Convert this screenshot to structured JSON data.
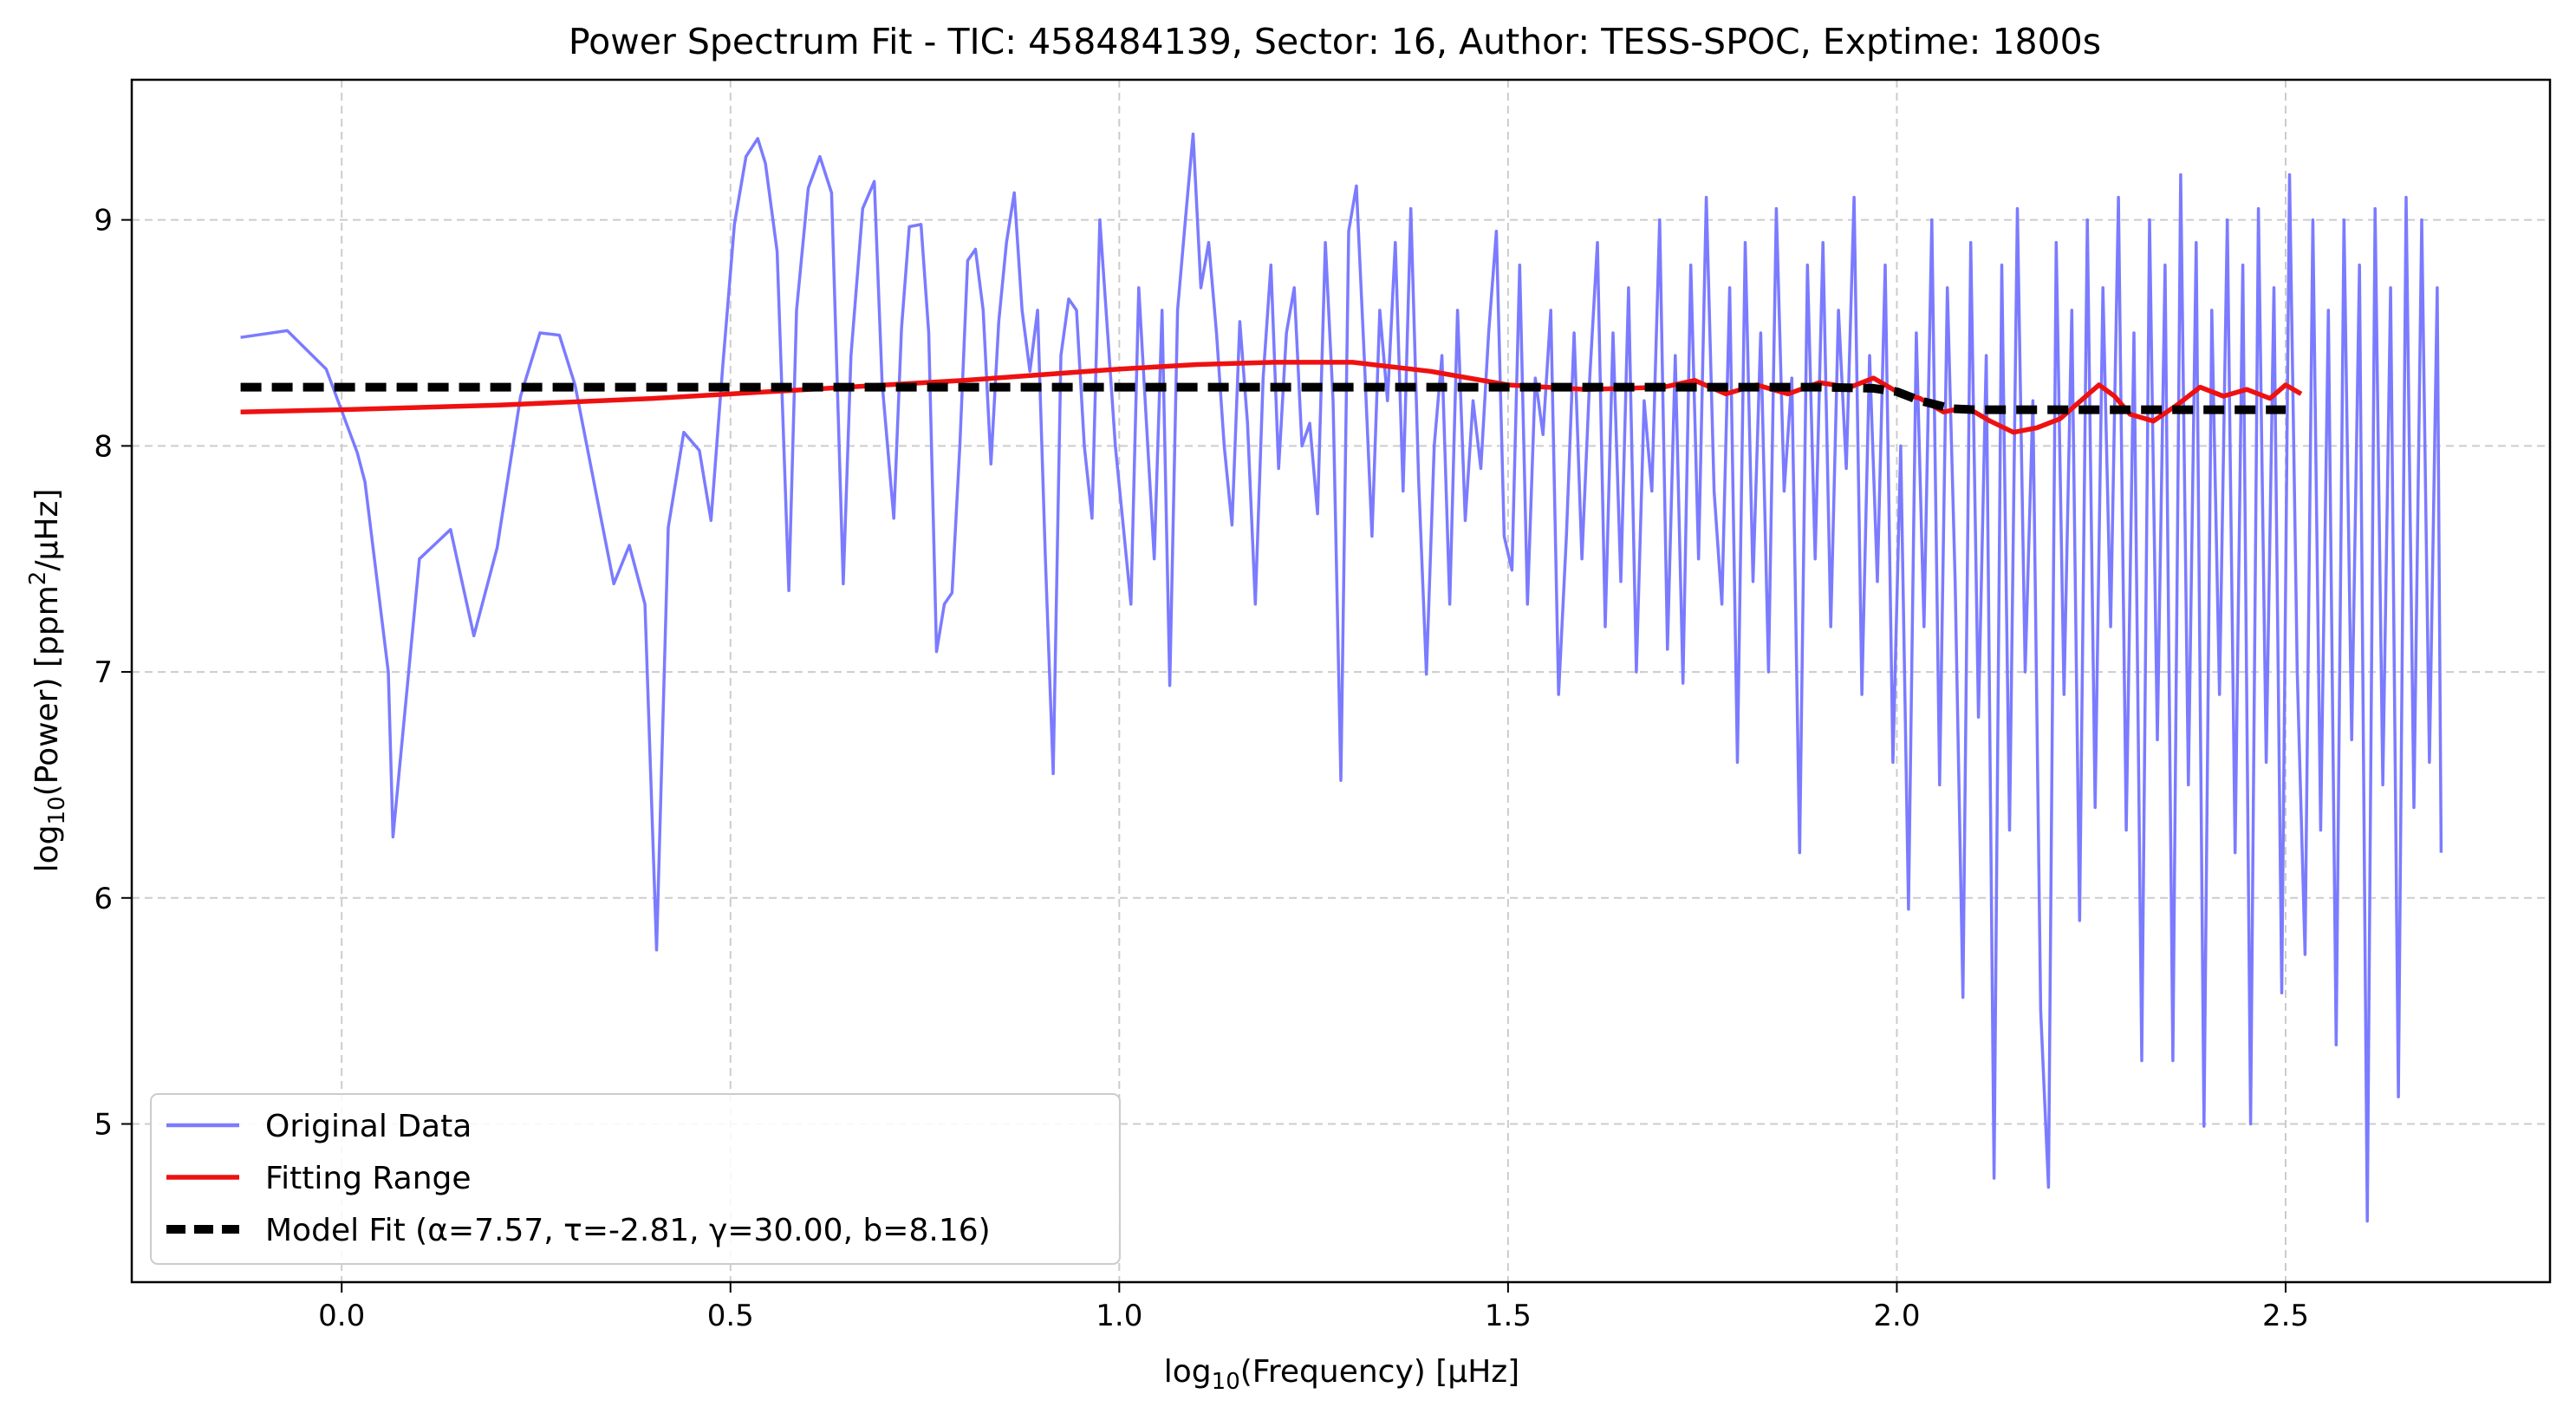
{
  "chart_data": {
    "type": "line",
    "title": "Power Spectrum Fit - TIC: 458484139, Sector: 16, Author: TESS-SPOC, Exptime: 1800s",
    "xlabel": {
      "prefix": "log",
      "sub": "10",
      "suffix": "(Frequency) [μHz]"
    },
    "ylabel": {
      "prefix": "log",
      "sub": "10",
      "mid": "(Power) [ppm",
      "sup": "2",
      "suffix": "/μHz]"
    },
    "xlim": [
      -0.27,
      2.84
    ],
    "ylim": [
      4.3,
      9.62
    ],
    "xticks": [
      0.0,
      0.5,
      1.0,
      1.5,
      2.0,
      2.5
    ],
    "xtick_labels": [
      "0.0",
      "0.5",
      "1.0",
      "1.5",
      "2.0",
      "2.5"
    ],
    "yticks": [
      5,
      6,
      7,
      8,
      9
    ],
    "ytick_labels": [
      "5",
      "6",
      "7",
      "8",
      "9"
    ],
    "grid": true,
    "legend_position": "lower-left",
    "series": [
      {
        "name": "Original Data",
        "color": "#7b7bff",
        "style": "solid",
        "points": [
          [
            -0.13,
            8.48
          ],
          [
            -0.07,
            8.51
          ],
          [
            -0.02,
            8.34
          ],
          [
            0.02,
            7.97
          ],
          [
            0.03,
            7.84
          ],
          [
            0.06,
            7.0
          ],
          [
            0.066,
            6.27
          ],
          [
            0.1,
            7.5
          ],
          [
            0.14,
            7.63
          ],
          [
            0.17,
            7.16
          ],
          [
            0.2,
            7.55
          ],
          [
            0.23,
            8.22
          ],
          [
            0.255,
            8.5
          ],
          [
            0.28,
            8.49
          ],
          [
            0.3,
            8.27
          ],
          [
            0.33,
            7.74
          ],
          [
            0.35,
            7.39
          ],
          [
            0.37,
            7.56
          ],
          [
            0.39,
            7.3
          ],
          [
            0.405,
            5.77
          ],
          [
            0.42,
            7.64
          ],
          [
            0.44,
            8.06
          ],
          [
            0.46,
            7.98
          ],
          [
            0.475,
            7.67
          ],
          [
            0.49,
            8.35
          ],
          [
            0.505,
            8.98
          ],
          [
            0.52,
            9.28
          ],
          [
            0.535,
            9.36
          ],
          [
            0.545,
            9.25
          ],
          [
            0.56,
            8.86
          ],
          [
            0.575,
            7.36
          ],
          [
            0.585,
            8.6
          ],
          [
            0.6,
            9.14
          ],
          [
            0.615,
            9.28
          ],
          [
            0.63,
            9.12
          ],
          [
            0.645,
            7.39
          ],
          [
            0.655,
            8.4
          ],
          [
            0.67,
            9.05
          ],
          [
            0.685,
            9.17
          ],
          [
            0.695,
            8.28
          ],
          [
            0.71,
            7.68
          ],
          [
            0.72,
            8.52
          ],
          [
            0.73,
            8.97
          ],
          [
            0.745,
            8.98
          ],
          [
            0.755,
            8.5
          ],
          [
            0.765,
            7.09
          ],
          [
            0.775,
            7.3
          ],
          [
            0.785,
            7.35
          ],
          [
            0.795,
            8.0
          ],
          [
            0.805,
            8.82
          ],
          [
            0.815,
            8.87
          ],
          [
            0.825,
            8.6
          ],
          [
            0.835,
            7.92
          ],
          [
            0.845,
            8.55
          ],
          [
            0.855,
            8.9
          ],
          [
            0.865,
            9.12
          ],
          [
            0.875,
            8.6
          ],
          [
            0.885,
            8.33
          ],
          [
            0.895,
            8.6
          ],
          [
            0.905,
            7.5
          ],
          [
            0.915,
            6.55
          ],
          [
            0.925,
            8.4
          ],
          [
            0.935,
            8.65
          ],
          [
            0.945,
            8.6
          ],
          [
            0.955,
            8.0
          ],
          [
            0.965,
            7.68
          ],
          [
            0.975,
            9.0
          ],
          [
            0.985,
            8.5
          ],
          [
            0.995,
            8.0
          ],
          [
            1.005,
            7.65
          ],
          [
            1.015,
            7.3
          ],
          [
            1.025,
            8.7
          ],
          [
            1.035,
            8.1
          ],
          [
            1.045,
            7.5
          ],
          [
            1.055,
            8.6
          ],
          [
            1.065,
            6.94
          ],
          [
            1.075,
            8.6
          ],
          [
            1.085,
            9.0
          ],
          [
            1.095,
            9.38
          ],
          [
            1.105,
            8.7
          ],
          [
            1.115,
            8.9
          ],
          [
            1.125,
            8.5
          ],
          [
            1.135,
            8.0
          ],
          [
            1.145,
            7.65
          ],
          [
            1.155,
            8.55
          ],
          [
            1.165,
            8.1
          ],
          [
            1.175,
            7.3
          ],
          [
            1.185,
            8.3
          ],
          [
            1.195,
            8.8
          ],
          [
            1.205,
            7.9
          ],
          [
            1.215,
            8.5
          ],
          [
            1.225,
            8.7
          ],
          [
            1.235,
            8.0
          ],
          [
            1.245,
            8.1
          ],
          [
            1.255,
            7.7
          ],
          [
            1.265,
            8.9
          ],
          [
            1.275,
            8.2
          ],
          [
            1.285,
            6.52
          ],
          [
            1.295,
            8.95
          ],
          [
            1.305,
            9.15
          ],
          [
            1.315,
            8.4
          ],
          [
            1.325,
            7.6
          ],
          [
            1.335,
            8.6
          ],
          [
            1.345,
            8.2
          ],
          [
            1.355,
            8.9
          ],
          [
            1.365,
            7.8
          ],
          [
            1.375,
            9.05
          ],
          [
            1.385,
            7.85
          ],
          [
            1.395,
            6.99
          ],
          [
            1.405,
            8.0
          ],
          [
            1.415,
            8.4
          ],
          [
            1.425,
            7.3
          ],
          [
            1.435,
            8.6
          ],
          [
            1.445,
            7.67
          ],
          [
            1.455,
            8.2
          ],
          [
            1.465,
            7.9
          ],
          [
            1.475,
            8.5
          ],
          [
            1.485,
            8.95
          ],
          [
            1.495,
            7.6
          ],
          [
            1.505,
            7.45
          ],
          [
            1.515,
            8.8
          ],
          [
            1.525,
            7.3
          ],
          [
            1.535,
            8.3
          ],
          [
            1.545,
            8.05
          ],
          [
            1.555,
            8.6
          ],
          [
            1.565,
            6.9
          ],
          [
            1.575,
            7.6
          ],
          [
            1.585,
            8.5
          ],
          [
            1.595,
            7.5
          ],
          [
            1.605,
            8.3
          ],
          [
            1.615,
            8.9
          ],
          [
            1.625,
            7.2
          ],
          [
            1.635,
            8.5
          ],
          [
            1.645,
            7.4
          ],
          [
            1.655,
            8.7
          ],
          [
            1.665,
            7.0
          ],
          [
            1.675,
            8.2
          ],
          [
            1.685,
            7.8
          ],
          [
            1.695,
            9.0
          ],
          [
            1.705,
            7.1
          ],
          [
            1.715,
            8.4
          ],
          [
            1.725,
            6.95
          ],
          [
            1.735,
            8.8
          ],
          [
            1.745,
            7.5
          ],
          [
            1.755,
            9.1
          ],
          [
            1.765,
            7.8
          ],
          [
            1.775,
            7.3
          ],
          [
            1.785,
            8.7
          ],
          [
            1.795,
            6.6
          ],
          [
            1.805,
            8.9
          ],
          [
            1.815,
            7.4
          ],
          [
            1.825,
            8.5
          ],
          [
            1.835,
            7.0
          ],
          [
            1.845,
            9.05
          ],
          [
            1.855,
            7.8
          ],
          [
            1.865,
            8.3
          ],
          [
            1.875,
            6.2
          ],
          [
            1.885,
            8.8
          ],
          [
            1.895,
            7.5
          ],
          [
            1.905,
            8.9
          ],
          [
            1.915,
            7.2
          ],
          [
            1.925,
            8.6
          ],
          [
            1.935,
            7.9
          ],
          [
            1.945,
            9.1
          ],
          [
            1.955,
            6.9
          ],
          [
            1.965,
            8.4
          ],
          [
            1.975,
            7.4
          ],
          [
            1.985,
            8.8
          ],
          [
            1.995,
            6.6
          ],
          [
            2.005,
            8.0
          ],
          [
            2.015,
            5.95
          ],
          [
            2.025,
            8.5
          ],
          [
            2.035,
            7.2
          ],
          [
            2.045,
            9.0
          ],
          [
            2.055,
            6.5
          ],
          [
            2.065,
            8.7
          ],
          [
            2.075,
            7.4
          ],
          [
            2.085,
            5.56
          ],
          [
            2.095,
            8.9
          ],
          [
            2.105,
            6.8
          ],
          [
            2.115,
            8.4
          ],
          [
            2.125,
            4.76
          ],
          [
            2.135,
            8.8
          ],
          [
            2.145,
            6.3
          ],
          [
            2.155,
            9.05
          ],
          [
            2.165,
            7.0
          ],
          [
            2.175,
            8.2
          ],
          [
            2.185,
            5.5
          ],
          [
            2.195,
            4.72
          ],
          [
            2.205,
            8.9
          ],
          [
            2.215,
            6.9
          ],
          [
            2.225,
            8.6
          ],
          [
            2.235,
            5.9
          ],
          [
            2.245,
            9.0
          ],
          [
            2.255,
            6.4
          ],
          [
            2.265,
            8.7
          ],
          [
            2.275,
            7.2
          ],
          [
            2.285,
            9.1
          ],
          [
            2.295,
            6.3
          ],
          [
            2.305,
            8.5
          ],
          [
            2.315,
            5.28
          ],
          [
            2.325,
            9.0
          ],
          [
            2.335,
            6.7
          ],
          [
            2.345,
            8.8
          ],
          [
            2.355,
            5.28
          ],
          [
            2.365,
            9.2
          ],
          [
            2.375,
            6.5
          ],
          [
            2.385,
            8.9
          ],
          [
            2.395,
            4.99
          ],
          [
            2.405,
            8.6
          ],
          [
            2.415,
            6.9
          ],
          [
            2.425,
            9.0
          ],
          [
            2.435,
            6.2
          ],
          [
            2.445,
            8.8
          ],
          [
            2.455,
            5.0
          ],
          [
            2.465,
            9.05
          ],
          [
            2.475,
            6.6
          ],
          [
            2.485,
            8.7
          ],
          [
            2.495,
            5.58
          ],
          [
            2.505,
            9.2
          ],
          [
            2.515,
            7.0
          ],
          [
            2.525,
            5.75
          ],
          [
            2.535,
            9.0
          ],
          [
            2.545,
            6.3
          ],
          [
            2.555,
            8.6
          ],
          [
            2.565,
            5.35
          ],
          [
            2.575,
            9.0
          ],
          [
            2.585,
            6.7
          ],
          [
            2.595,
            8.8
          ],
          [
            2.605,
            4.57
          ],
          [
            2.615,
            9.05
          ],
          [
            2.625,
            6.5
          ],
          [
            2.635,
            8.7
          ],
          [
            2.645,
            5.12
          ],
          [
            2.655,
            9.1
          ],
          [
            2.665,
            6.4
          ],
          [
            2.675,
            9.0
          ],
          [
            2.685,
            6.6
          ],
          [
            2.695,
            8.7
          ],
          [
            2.7,
            6.2
          ]
        ]
      },
      {
        "name": "Fitting Range",
        "color": "#ee1111",
        "style": "solid",
        "points": [
          [
            -0.13,
            8.15
          ],
          [
            0.0,
            8.16
          ],
          [
            0.2,
            8.18
          ],
          [
            0.4,
            8.21
          ],
          [
            0.6,
            8.25
          ],
          [
            0.8,
            8.29
          ],
          [
            1.0,
            8.34
          ],
          [
            1.1,
            8.36
          ],
          [
            1.2,
            8.37
          ],
          [
            1.3,
            8.37
          ],
          [
            1.4,
            8.33
          ],
          [
            1.5,
            8.27
          ],
          [
            1.6,
            8.25
          ],
          [
            1.7,
            8.26
          ],
          [
            1.74,
            8.29
          ],
          [
            1.78,
            8.23
          ],
          [
            1.82,
            8.27
          ],
          [
            1.86,
            8.23
          ],
          [
            1.9,
            8.28
          ],
          [
            1.94,
            8.26
          ],
          [
            1.97,
            8.3
          ],
          [
            2.0,
            8.24
          ],
          [
            2.03,
            8.21
          ],
          [
            2.06,
            8.15
          ],
          [
            2.09,
            8.17
          ],
          [
            2.12,
            8.11
          ],
          [
            2.15,
            8.06
          ],
          [
            2.18,
            8.08
          ],
          [
            2.21,
            8.12
          ],
          [
            2.24,
            8.21
          ],
          [
            2.26,
            8.27
          ],
          [
            2.28,
            8.22
          ],
          [
            2.3,
            8.14
          ],
          [
            2.33,
            8.11
          ],
          [
            2.36,
            8.18
          ],
          [
            2.39,
            8.26
          ],
          [
            2.42,
            8.22
          ],
          [
            2.45,
            8.25
          ],
          [
            2.48,
            8.21
          ],
          [
            2.5,
            8.27
          ],
          [
            2.52,
            8.23
          ]
        ]
      },
      {
        "name": "Model Fit (α=7.57, τ=-2.81, γ=30.00, b=8.16)",
        "color": "#000000",
        "style": "dashed",
        "points": [
          [
            -0.13,
            8.26
          ],
          [
            1.9,
            8.26
          ],
          [
            1.97,
            8.255
          ],
          [
            2.0,
            8.24
          ],
          [
            2.03,
            8.2
          ],
          [
            2.07,
            8.165
          ],
          [
            2.1,
            8.16
          ],
          [
            2.5,
            8.16
          ]
        ]
      }
    ]
  }
}
